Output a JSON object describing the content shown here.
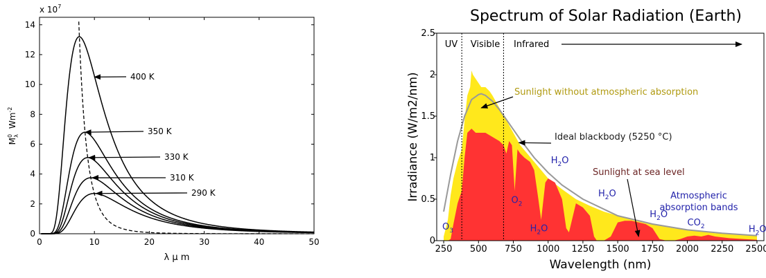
{
  "chart_data": [
    {
      "type": "line",
      "title": "",
      "xlabel": "λ μ m",
      "ylabel": "M",
      "ylabel_super": "0",
      "ylabel_sub": "λ",
      "ylabel_unit": "Wm",
      "ylabel_unit_exp": "-2",
      "y_multiplier_base": "x 10",
      "y_multiplier_exp": "7",
      "xlim": [
        0,
        50
      ],
      "ylim": [
        0,
        14.5
      ],
      "x_ticks": [
        "0",
        "10",
        "20",
        "30",
        "40",
        "50"
      ],
      "y_ticks": [
        "0",
        "2",
        "4",
        "6",
        "8",
        "10",
        "12",
        "14"
      ],
      "grid": false,
      "series": [
        {
          "name": "400 K",
          "temperature": 400,
          "peak_x": 7.24,
          "peak_y": 13.2
        },
        {
          "name": "350 K",
          "temperature": 350,
          "peak_x": 8.28,
          "peak_y": 6.8
        },
        {
          "name": "330 K",
          "temperature": 330,
          "peak_x": 8.78,
          "peak_y": 5.1
        },
        {
          "name": "310 K",
          "temperature": 310,
          "peak_x": 9.35,
          "peak_y": 3.75
        },
        {
          "name": "290 K",
          "temperature": 290,
          "peak_x": 9.99,
          "peak_y": 2.7
        }
      ],
      "wien_locus": "dashed",
      "annotations": [
        {
          "text": "400 K",
          "target": [
            10,
            10.5
          ]
        },
        {
          "text": "350 K",
          "target": [
            8.3,
            6.8
          ]
        },
        {
          "text": "330 K",
          "target": [
            9.0,
            5.1
          ]
        },
        {
          "text": "310 K",
          "target": [
            9.6,
            3.75
          ]
        },
        {
          "text": "290 K",
          "target": [
            10.3,
            2.7
          ]
        }
      ]
    },
    {
      "type": "area",
      "title": "Spectrum of Solar Radiation (Earth)",
      "xlabel": "Wavelength (nm)",
      "ylabel": "Irradiance (W/m2/nm)",
      "xlim": [
        200,
        2550
      ],
      "ylim": [
        0,
        2.5
      ],
      "x_ticks": [
        "250",
        "500",
        "750",
        "1000",
        "1250",
        "1500",
        "1750",
        "2000",
        "2250",
        "2500"
      ],
      "y_ticks": [
        "0",
        "0.5",
        "1",
        "1.5",
        "2",
        "2.5"
      ],
      "grid": false,
      "regions": [
        {
          "label": "UV",
          "from": 200,
          "to": 380
        },
        {
          "label": "Visible",
          "from": 380,
          "to": 680
        },
        {
          "label": "Infrared",
          "from": 680,
          "to": 2550
        }
      ],
      "series": [
        {
          "name": "Sunlight without atmospheric absorption",
          "color": "#ffe81c",
          "x": [
            250,
            280,
            300,
            320,
            350,
            380,
            400,
            420,
            440,
            450,
            460,
            480,
            500,
            520,
            550,
            580,
            600,
            650,
            700,
            750,
            800,
            850,
            900,
            950,
            1000,
            1100,
            1200,
            1300,
            1400,
            1500,
            1600,
            1700,
            1800,
            1900,
            2000,
            2100,
            2200,
            2300,
            2400,
            2500
          ],
          "y": [
            0.05,
            0.25,
            0.55,
            0.75,
            0.95,
            1.1,
            1.45,
            1.75,
            1.85,
            2.05,
            2.0,
            1.95,
            1.9,
            1.85,
            1.85,
            1.8,
            1.75,
            1.6,
            1.45,
            1.3,
            1.15,
            1.05,
            0.95,
            0.85,
            0.75,
            0.62,
            0.5,
            0.42,
            0.35,
            0.3,
            0.25,
            0.21,
            0.18,
            0.15,
            0.13,
            0.11,
            0.09,
            0.08,
            0.07,
            0.06
          ]
        },
        {
          "name": "Ideal blackbody (5250 °C)",
          "color": "#999999",
          "x": [
            250,
            300,
            350,
            400,
            450,
            500,
            520,
            550,
            600,
            650,
            700,
            750,
            800,
            900,
            1000,
            1100,
            1250,
            1500,
            1750,
            2000,
            2250,
            2500
          ],
          "y": [
            0.35,
            0.8,
            1.2,
            1.5,
            1.7,
            1.76,
            1.77,
            1.75,
            1.68,
            1.58,
            1.46,
            1.34,
            1.22,
            1.0,
            0.82,
            0.67,
            0.5,
            0.3,
            0.2,
            0.13,
            0.09,
            0.06
          ]
        },
        {
          "name": "Sunlight at sea level",
          "color": "#ff3333",
          "x": [
            280,
            300,
            320,
            350,
            380,
            400,
            420,
            450,
            480,
            500,
            550,
            600,
            650,
            680,
            700,
            720,
            740,
            760,
            780,
            800,
            830,
            870,
            900,
            930,
            950,
            980,
            1000,
            1050,
            1100,
            1130,
            1150,
            1200,
            1250,
            1300,
            1330,
            1350,
            1400,
            1450,
            1500,
            1550,
            1600,
            1650,
            1700,
            1750,
            1800,
            1850,
            1900,
            1950,
            2000,
            2050,
            2100,
            2150,
            2200,
            2300,
            2400,
            2500
          ],
          "y": [
            0,
            0.02,
            0.2,
            0.45,
            0.6,
            1.0,
            1.3,
            1.35,
            1.3,
            1.3,
            1.3,
            1.25,
            1.2,
            1.15,
            1.05,
            1.2,
            1.15,
            0.6,
            1.1,
            1.05,
            1.0,
            0.95,
            0.85,
            0.5,
            0.25,
            0.7,
            0.75,
            0.7,
            0.5,
            0.15,
            0.1,
            0.45,
            0.4,
            0.3,
            0.05,
            0.0,
            0.0,
            0.05,
            0.22,
            0.24,
            0.24,
            0.22,
            0.2,
            0.15,
            0.02,
            0.0,
            0.0,
            0.02,
            0.05,
            0.06,
            0.05,
            0.07,
            0.05,
            0.03,
            0.02,
            0.01
          ]
        }
      ],
      "annotations": [
        {
          "text": "Sunlight without atmospheric absorption",
          "color": "#b09a10",
          "arrow_to": [
            520,
            1.6
          ]
        },
        {
          "text": "Ideal blackbody (5250 °C)",
          "color": "#1a1a1a",
          "arrow_to": [
            790,
            1.18
          ]
        },
        {
          "text": "Sunlight at sea level",
          "color": "#6b2424",
          "arrow_to": [
            1650,
            0.05
          ]
        },
        {
          "text": "Atmospheric absorption bands",
          "color": "#2222aa"
        }
      ],
      "absorption_labels": [
        {
          "text": "O",
          "sub": "3",
          "x": 240,
          "y": 0.1
        },
        {
          "text": "O",
          "sub": "2",
          "x": 735,
          "y": 0.42
        },
        {
          "text": "H",
          "sub": "2",
          "tail": "O",
          "x": 1020,
          "y": 0.9
        },
        {
          "text": "H",
          "sub": "2",
          "tail": "O",
          "x": 1360,
          "y": 0.5
        },
        {
          "text": "H",
          "sub": "2",
          "tail": "O",
          "x": 870,
          "y": 0.08
        },
        {
          "text": "H",
          "sub": "2",
          "tail": "O",
          "x": 1730,
          "y": 0.25
        },
        {
          "text": "CO",
          "sub": "2",
          "x": 2000,
          "y": 0.15
        },
        {
          "text": "H",
          "sub": "2",
          "tail": "O",
          "x": 2440,
          "y": 0.07
        }
      ],
      "infrared_arrow": true
    }
  ]
}
